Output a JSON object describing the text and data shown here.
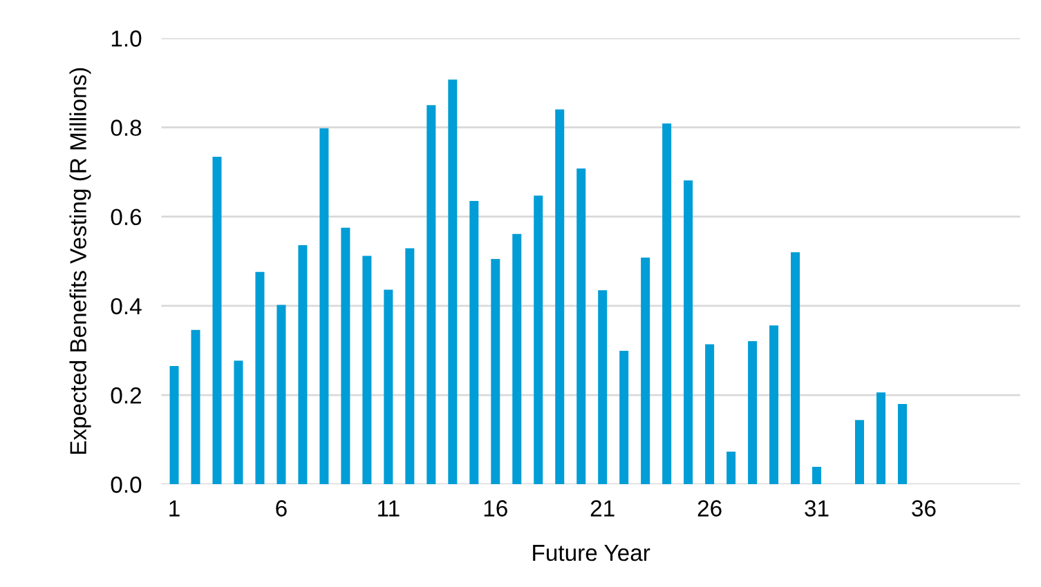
{
  "chart_data": {
    "type": "bar",
    "xlabel": "Future Year",
    "ylabel": "Expected Benefits Vesting (R Millions)",
    "categories": [
      "1",
      null,
      null,
      null,
      null,
      "6",
      null,
      null,
      null,
      null,
      "11",
      null,
      null,
      null,
      null,
      "16",
      null,
      null,
      null,
      null,
      "21",
      null,
      null,
      null,
      null,
      "26",
      null,
      null,
      null,
      null,
      "31",
      null,
      null,
      null,
      null,
      "36",
      null,
      null,
      null,
      null
    ],
    "values": [
      0.265,
      0.346,
      0.734,
      0.277,
      0.476,
      0.402,
      0.536,
      0.798,
      0.575,
      0.512,
      0.436,
      0.529,
      0.85,
      0.907,
      0.635,
      0.505,
      0.561,
      0.647,
      0.84,
      0.708,
      0.435,
      0.299,
      0.508,
      0.809,
      0.681,
      0.314,
      0.073,
      0.321,
      0.356,
      0.52,
      0.039,
      0,
      0.144,
      0.206,
      0.18,
      0,
      0,
      0,
      0,
      0
    ],
    "color": "#009dd6",
    "ylim": [
      0,
      1.0
    ],
    "yticks": [
      {
        "value": 0,
        "label": "0.0"
      },
      {
        "value": 0.2,
        "label": "0.2"
      },
      {
        "value": 0.4,
        "label": "0.4"
      },
      {
        "value": 0.6,
        "label": "0.6"
      },
      {
        "value": 0.8,
        "label": "0.8"
      },
      {
        "value": 1.0,
        "label": "1.0"
      }
    ],
    "grid": "y"
  }
}
